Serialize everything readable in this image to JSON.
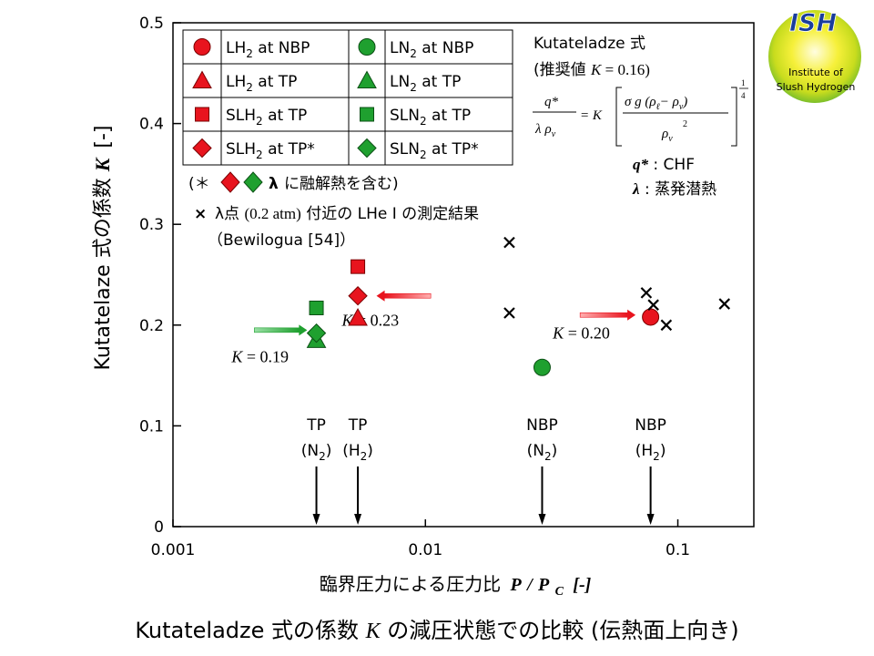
{
  "chart_data": {
    "type": "scatter",
    "title": "",
    "xlabel_prefix": "臨界圧力による圧力比",
    "xlabel_var_num": "P",
    "xlabel_slash": "/",
    "xlabel_var_den": "P",
    "xlabel_var_sub": "C",
    "xlabel_unit": "[-]",
    "ylabel_prefix": "Kutatelaze 式の係数",
    "ylabel_var": "K",
    "ylabel_unit": "[-]",
    "x_scale": "log",
    "xlim": [
      0.001,
      0.2
    ],
    "ylim": [
      0,
      0.5
    ],
    "x_ticks": [
      {
        "value": 0.001,
        "label": "0.001"
      },
      {
        "value": 0.01,
        "label": "0.01"
      },
      {
        "value": 0.1,
        "label": "0.1"
      }
    ],
    "y_ticks": [
      {
        "value": 0,
        "label": "0"
      },
      {
        "value": 0.1,
        "label": "0.1"
      },
      {
        "value": 0.2,
        "label": "0.2"
      },
      {
        "value": 0.3,
        "label": "0.3"
      },
      {
        "value": 0.4,
        "label": "0.4"
      },
      {
        "value": 0.5,
        "label": "0.5"
      }
    ],
    "series": [
      {
        "key": "lh2_nbp",
        "marker": "circle",
        "color": "#e8141e",
        "points": [
          {
            "x": 0.078,
            "y": 0.208
          }
        ]
      },
      {
        "key": "ln2_nbp",
        "marker": "circle",
        "color": "#1fa02f",
        "points": [
          {
            "x": 0.029,
            "y": 0.158
          }
        ]
      },
      {
        "key": "lh2_tp",
        "marker": "triangle",
        "color": "#e8141e",
        "points": [
          {
            "x": 0.0054,
            "y": 0.207
          }
        ]
      },
      {
        "key": "ln2_tp",
        "marker": "triangle",
        "color": "#1fa02f",
        "points": [
          {
            "x": 0.0037,
            "y": 0.185
          }
        ]
      },
      {
        "key": "slh2_tp",
        "marker": "square",
        "color": "#e8141e",
        "points": [
          {
            "x": 0.0054,
            "y": 0.258
          }
        ]
      },
      {
        "key": "sln2_tp",
        "marker": "square",
        "color": "#1fa02f",
        "points": [
          {
            "x": 0.0037,
            "y": 0.217
          }
        ]
      },
      {
        "key": "slh2_tp_star",
        "marker": "diamond",
        "color": "#e8141e",
        "points": [
          {
            "x": 0.0054,
            "y": 0.229
          }
        ]
      },
      {
        "key": "sln2_tp_star",
        "marker": "diamond",
        "color": "#1fa02f",
        "points": [
          {
            "x": 0.0037,
            "y": 0.192
          }
        ]
      },
      {
        "key": "lhe_lambda",
        "marker": "cross",
        "color": "#000000",
        "points": [
          {
            "x": 0.0215,
            "y": 0.282
          },
          {
            "x": 0.0215,
            "y": 0.212
          },
          {
            "x": 0.075,
            "y": 0.232
          },
          {
            "x": 0.08,
            "y": 0.22
          },
          {
            "x": 0.09,
            "y": 0.2
          },
          {
            "x": 0.153,
            "y": 0.221
          }
        ]
      }
    ],
    "legend": {
      "position": "top-left",
      "rows": [
        {
          "left_key": "lh2_nbp",
          "left_main": "LH",
          "left_sub": "2",
          "left_tail": " at NBP",
          "right_key": "ln2_nbp",
          "right_main": "LN",
          "right_sub": "2",
          "right_tail": " at NBP"
        },
        {
          "left_key": "lh2_tp",
          "left_main": "LH",
          "left_sub": "2",
          "left_tail": " at TP",
          "right_key": "ln2_tp",
          "right_main": "LN",
          "right_sub": "2",
          "right_tail": " at TP"
        },
        {
          "left_key": "slh2_tp",
          "left_main": "SLH",
          "left_sub": "2",
          "left_tail": " at TP",
          "right_key": "sln2_tp",
          "right_main": "SLN",
          "right_sub": "2",
          "right_tail": " at TP"
        },
        {
          "left_key": "slh2_tp_star",
          "left_main": "SLH",
          "left_sub": "2",
          "left_tail": " at TP*",
          "right_key": "sln2_tp_star",
          "right_main": "SLN",
          "right_sub": "2",
          "right_tail": " at TP*"
        }
      ]
    },
    "notes": {
      "star_open": "(＊",
      "star_lambda": "λ",
      "star_text": "に融解熱を含む)",
      "lhe_marker": "×",
      "lhe_lambda": "λ点",
      "lhe_paren": "(0.2 atm)",
      "lhe_text": "付近の LHe Ⅰ の測定結果",
      "lhe_ref": "（Bewilogua [54]）"
    },
    "reference_lines": [
      {
        "x": 0.0037,
        "label_top": "TP",
        "label_main": "(N",
        "label_sub": "2",
        "label_close": ")"
      },
      {
        "x": 0.0054,
        "label_top": "TP",
        "label_main": "(H",
        "label_sub": "2",
        "label_close": ")"
      },
      {
        "x": 0.029,
        "label_top": "NBP",
        "label_main": "(N",
        "label_sub": "2",
        "label_close": ")"
      },
      {
        "x": 0.078,
        "label_top": "NBP",
        "label_main": "(H",
        "label_sub": "2",
        "label_close": ")"
      }
    ],
    "annotations": [
      {
        "var": "K",
        "text": " = 0.19",
        "color": "#1fa02f",
        "arrow_from_x": 0.0021,
        "arrow_to_x": 0.0034,
        "y": 0.195
      },
      {
        "var": "K",
        "text": " = 0.23",
        "color": "#e8141e",
        "arrow_from_x": 0.0105,
        "arrow_to_x": 0.0064,
        "y": 0.229
      },
      {
        "var": "K",
        "text": " = 0.20",
        "color": "#e8141e",
        "arrow_from_x": 0.041,
        "arrow_to_x": 0.068,
        "y": 0.21
      }
    ],
    "formula": {
      "title": "Kutateladze 式",
      "subtitle_open": "(推奨値 ",
      "subtitle_var": "K",
      "subtitle_value": " = 0.16)",
      "lhs_num": "q*",
      "lhs_den_lambda": "λ",
      "lhs_den_rho": "ρ",
      "lhs_den_sub": "v",
      "equals": "= K",
      "rhs_num": "σ g (ρ",
      "rhs_num_sub1": "ℓ",
      "rhs_num_mid": "− ρ",
      "rhs_num_sub2": "v",
      "rhs_num_close": ")",
      "rhs_den": "ρ",
      "rhs_den_sub": "v",
      "rhs_den_sup": "2",
      "exp_num": "1",
      "exp_den": "4",
      "q_var": "q*",
      "q_desc": " : CHF",
      "lambda_var": "λ",
      "lambda_desc": " : 蒸発潜熱"
    }
  },
  "logo": {
    "top": "ISH",
    "line1": "Institute of",
    "line2": "Slush Hydrogen"
  },
  "caption": {
    "prefix": "Kutateladze 式の係数 ",
    "var": "K",
    "suffix": " の減圧状態での比較 (伝熱面上向き)"
  }
}
